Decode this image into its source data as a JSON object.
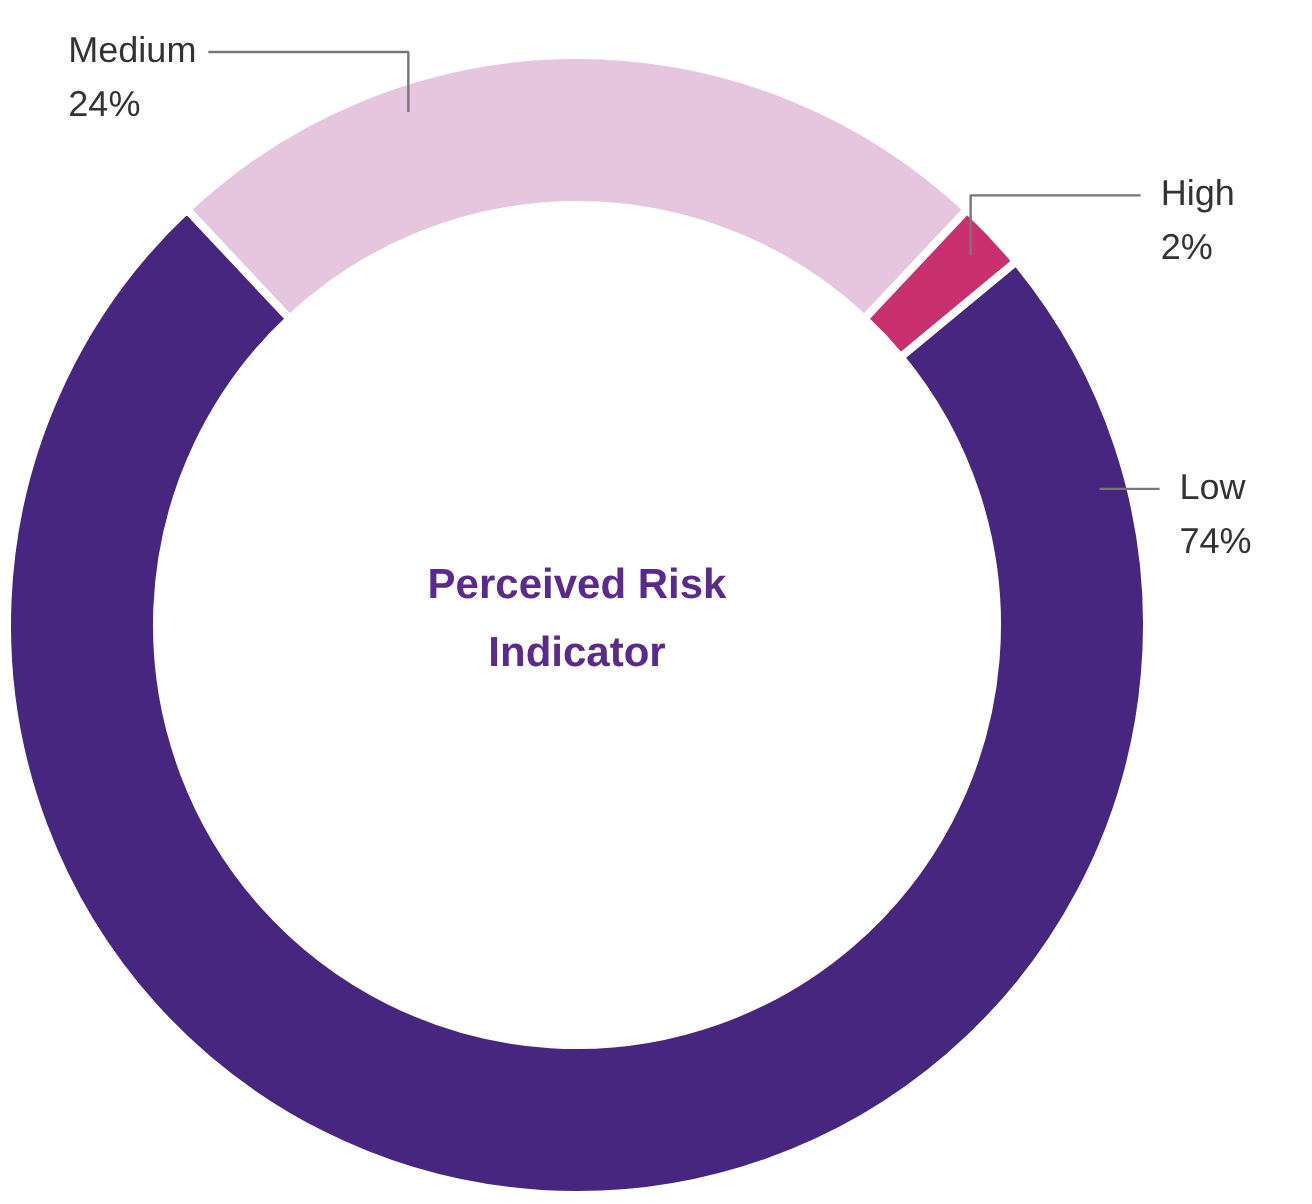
{
  "chart_data": {
    "type": "donut",
    "title": "Perceived Risk Indicator",
    "categories": [
      "Medium",
      "High",
      "Low"
    ],
    "values": [
      24,
      2,
      74
    ],
    "value_labels": [
      "24%",
      "2%",
      "74%"
    ],
    "colors": [
      "#e6c6df",
      "#c8306f",
      "#47267f"
    ]
  }
}
